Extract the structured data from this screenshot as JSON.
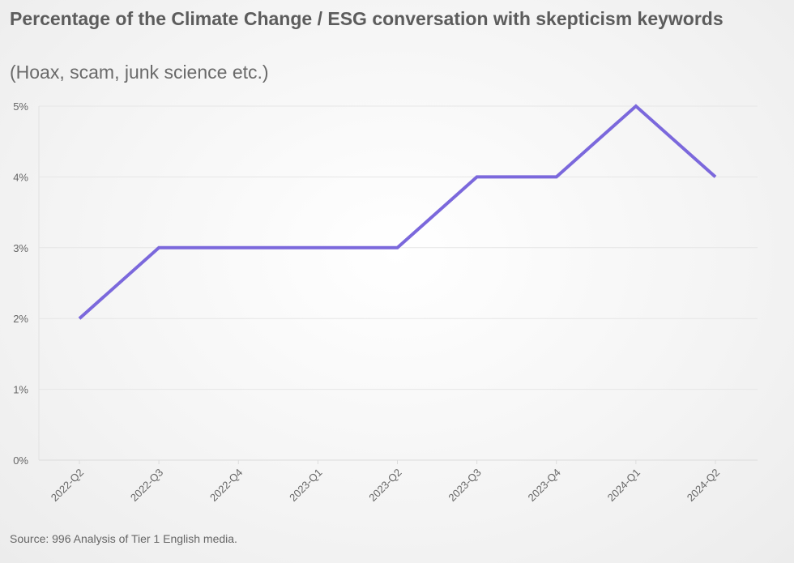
{
  "chart_data": {
    "type": "line",
    "title": "Percentage of the Climate Change / ESG conversation with skepticism keywords",
    "subtitle": "(Hoax, scam, junk science etc.)",
    "categories": [
      "2022-Q2",
      "2022-Q3",
      "2022-Q4",
      "2023-Q1",
      "2023-Q2",
      "2023-Q3",
      "2023-Q4",
      "2024-Q1",
      "2024-Q2"
    ],
    "series": [
      {
        "values": [
          2,
          3,
          3,
          3,
          3,
          4,
          4,
          5,
          4
        ]
      }
    ],
    "ylim": [
      0,
      5
    ],
    "yticks": [
      0,
      1,
      2,
      3,
      4,
      5
    ],
    "ytick_labels": [
      "0%",
      "1%",
      "2%",
      "3%",
      "4%",
      "5%"
    ],
    "xlabel": "",
    "ylabel": "",
    "grid": true,
    "line_color": "#7b68dc",
    "source": "Source: 996 Analysis of Tier 1 English media."
  }
}
